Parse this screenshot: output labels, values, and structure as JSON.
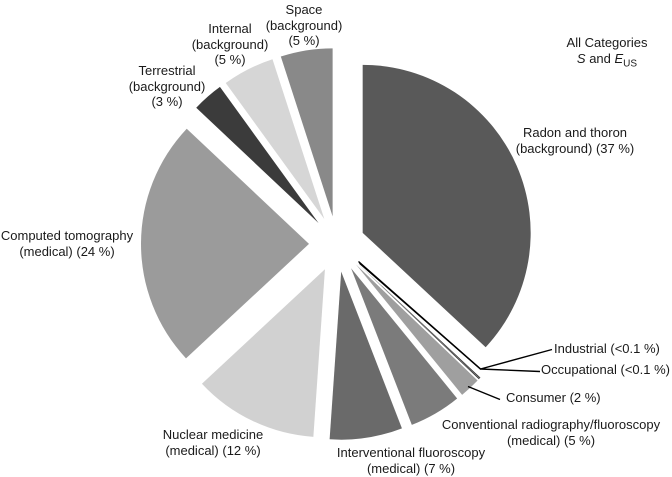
{
  "title": {
    "line1": "All Categories",
    "s_symbol": "S",
    "and_text": " and ",
    "e_symbol": "E",
    "e_subscript": "US"
  },
  "chart_data": {
    "type": "pie",
    "title": "All Categories S and E(US)",
    "start_angle_deg": 0,
    "direction": "clockwise",
    "legend_position": "none",
    "slices": [
      {
        "id": "radon-thoron",
        "label": "Radon and thoron (background)",
        "value": 37,
        "pct_text": "37 %",
        "color": "#595959",
        "label_lines": [
          "Radon and thoron",
          "(background) (37 %)"
        ]
      },
      {
        "id": "industrial",
        "label": "Industrial",
        "value": 0.1,
        "pct_text": "<0.1 %",
        "color": "#3a3a3a",
        "label_lines": [
          "Industrial (<0.1 %)"
        ]
      },
      {
        "id": "occupational",
        "label": "Occupational",
        "value": 0.1,
        "pct_text": "<0.1 %",
        "color": "#3a3a3a",
        "label_lines": [
          "Occupational (<0.1 %)"
        ]
      },
      {
        "id": "consumer",
        "label": "Consumer",
        "value": 2,
        "pct_text": "2 %",
        "color": "#9f9f9f",
        "label_lines": [
          "Consumer (2 %)"
        ]
      },
      {
        "id": "conventional-radiography",
        "label": "Conventional radiography/fluoroscopy (medical)",
        "value": 5,
        "pct_text": "5 %",
        "color": "#7b7b7b",
        "label_lines": [
          "Conventional radiography/fluoroscopy",
          "(medical) (5 %)"
        ]
      },
      {
        "id": "interventional-fluoroscopy",
        "label": "Interventional fluoroscopy (medical)",
        "value": 7,
        "pct_text": "7 %",
        "color": "#6a6a6a",
        "label_lines": [
          "Interventional fluoroscopy",
          "(medical) (7 %)"
        ]
      },
      {
        "id": "nuclear-medicine",
        "label": "Nuclear medicine (medical)",
        "value": 12,
        "pct_text": "12 %",
        "color": "#d1d1d1",
        "label_lines": [
          "Nuclear medicine",
          "(medical) (12 %)"
        ]
      },
      {
        "id": "computed-tomography",
        "label": "Computed tomography (medical)",
        "value": 24,
        "pct_text": "24 %",
        "color": "#9b9b9b",
        "label_lines": [
          "Computed tomography",
          "(medical) (24 %)"
        ]
      },
      {
        "id": "terrestrial",
        "label": "Terrestrial (background)",
        "value": 3,
        "pct_text": "3 %",
        "color": "#3b3b3b",
        "label_lines": [
          "Terrestrial",
          "(background)",
          "(3 %)"
        ]
      },
      {
        "id": "internal",
        "label": "Internal (background)",
        "value": 5,
        "pct_text": "5 %",
        "color": "#d6d6d6",
        "label_lines": [
          "Internal",
          "(background)",
          "(5 %)"
        ]
      },
      {
        "id": "space",
        "label": "Space (background)",
        "value": 5,
        "pct_text": "5 %",
        "color": "#898989",
        "label_lines": [
          "Space",
          "(background)",
          "(5 %)"
        ]
      }
    ]
  }
}
